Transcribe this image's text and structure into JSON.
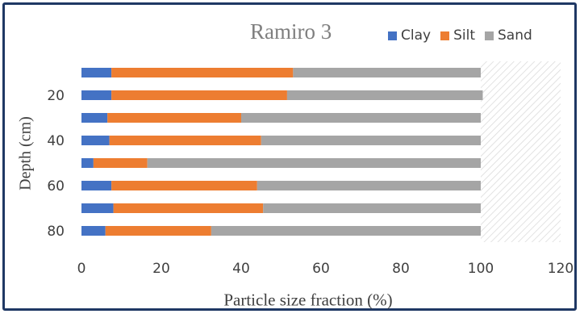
{
  "chart_data": {
    "type": "bar",
    "orientation": "horizontal",
    "stacked": true,
    "title": "Ramiro 3",
    "xlabel": "Particle size fraction (%)",
    "ylabel": "Depth (cm)",
    "xlim": [
      0,
      120
    ],
    "x_ticks": [
      "0",
      "20",
      "40",
      "60",
      "80",
      "100",
      "120"
    ],
    "y_ticks": [
      "20",
      "40",
      "60",
      "80"
    ],
    "categories": [
      "10",
      "20",
      "30",
      "40",
      "50",
      "60",
      "70",
      "80"
    ],
    "series": [
      {
        "name": "Clay",
        "color": "#4472c4",
        "values": [
          7.5,
          7.5,
          6.5,
          7.0,
          3.0,
          7.5,
          8.0,
          6.0
        ]
      },
      {
        "name": "Silt",
        "color": "#ed7d31",
        "values": [
          45.5,
          44.0,
          33.5,
          38.0,
          13.5,
          36.5,
          37.5,
          26.5
        ]
      },
      {
        "name": "Sand",
        "color": "#a5a5a5",
        "values": [
          47.0,
          49.0,
          60.0,
          55.0,
          83.5,
          56.0,
          54.5,
          67.5
        ]
      }
    ],
    "legend_position": "top-right",
    "grid": false
  }
}
